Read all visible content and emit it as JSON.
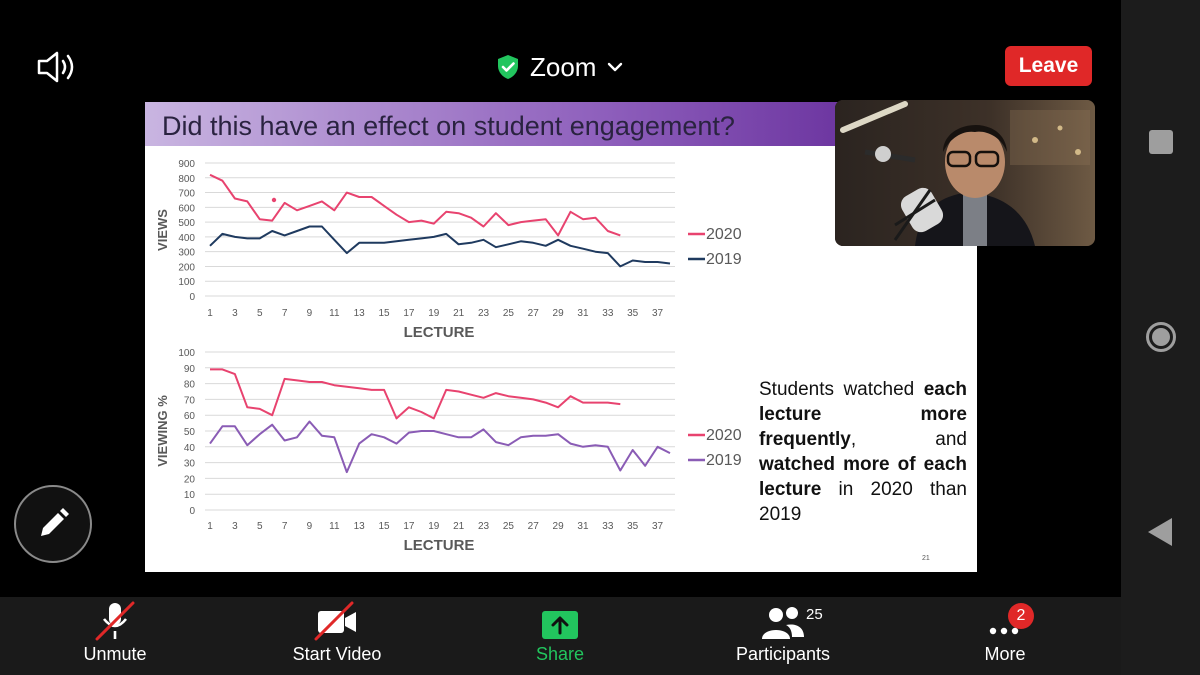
{
  "app": {
    "title": "Zoom",
    "leave_label": "Leave"
  },
  "toolbar": {
    "unmute_label": "Unmute",
    "start_video_label": "Start Video",
    "share_label": "Share",
    "participants_label": "Participants",
    "participants_count": "25",
    "more_label": "More",
    "more_badge": "2"
  },
  "colors": {
    "leave": "#e02828",
    "share_green": "#22c55e",
    "series_2020": "#e8436f",
    "series_2019_top": "#1f3a5f",
    "series_2019_bottom": "#8a5cb5"
  },
  "slide": {
    "title": "Did this have an effect on student engagement?",
    "slide_number": "21",
    "text_parts": {
      "p1": "Students watched ",
      "b1": "each lecture more frequently",
      "p2": ", and ",
      "b2": "watched more of each lecture",
      "p3": " in 2020 than 2019"
    }
  },
  "chart_data": [
    {
      "type": "line",
      "ylabel": "VIEWS",
      "xlabel": "LECTURE",
      "ylim": [
        0,
        900
      ],
      "yticks": [
        "0",
        "100",
        "200",
        "300",
        "400",
        "500",
        "600",
        "700",
        "800",
        "900"
      ],
      "xticks": [
        "1",
        "3",
        "5",
        "7",
        "9",
        "11",
        "13",
        "15",
        "17",
        "19",
        "21",
        "23",
        "25",
        "27",
        "29",
        "31",
        "33",
        "35",
        "37"
      ],
      "grid": true,
      "legend": "right",
      "series": [
        {
          "name": "2020",
          "x": [
            1,
            2,
            3,
            4,
            5,
            6,
            7,
            8,
            9,
            10,
            11,
            12,
            13,
            14,
            15,
            16,
            17,
            18,
            19,
            20,
            21,
            22,
            23,
            24,
            25,
            26,
            27,
            28,
            29,
            30,
            31,
            32,
            33,
            34
          ],
          "values": [
            820,
            780,
            660,
            640,
            520,
            510,
            630,
            580,
            610,
            640,
            580,
            700,
            670,
            670,
            610,
            550,
            500,
            510,
            490,
            570,
            560,
            530,
            470,
            560,
            480,
            500,
            510,
            520,
            410,
            570,
            520,
            530,
            440,
            410
          ]
        },
        {
          "name": "2019",
          "x": [
            1,
            2,
            3,
            4,
            5,
            6,
            7,
            8,
            9,
            10,
            11,
            12,
            13,
            14,
            15,
            16,
            17,
            18,
            19,
            20,
            21,
            22,
            23,
            24,
            25,
            26,
            27,
            28,
            29,
            30,
            31,
            32,
            33,
            34,
            35,
            36,
            37,
            38
          ],
          "values": [
            340,
            420,
            400,
            390,
            390,
            440,
            410,
            440,
            470,
            470,
            380,
            290,
            360,
            360,
            360,
            370,
            380,
            390,
            400,
            420,
            350,
            360,
            380,
            330,
            350,
            370,
            360,
            340,
            380,
            340,
            320,
            300,
            290,
            200,
            240,
            230,
            230,
            220
          ]
        }
      ]
    },
    {
      "type": "line",
      "ylabel": "VIEWING %",
      "xlabel": "LECTURE",
      "ylim": [
        0,
        100
      ],
      "yticks": [
        "0",
        "10",
        "20",
        "30",
        "40",
        "50",
        "60",
        "70",
        "80",
        "90",
        "100"
      ],
      "xticks": [
        "1",
        "3",
        "5",
        "7",
        "9",
        "11",
        "13",
        "15",
        "17",
        "19",
        "21",
        "23",
        "25",
        "27",
        "29",
        "31",
        "33",
        "35",
        "37"
      ],
      "grid": true,
      "legend": "right",
      "series": [
        {
          "name": "2020",
          "x": [
            1,
            2,
            3,
            4,
            5,
            6,
            7,
            8,
            9,
            10,
            11,
            12,
            13,
            14,
            15,
            16,
            17,
            18,
            19,
            20,
            21,
            22,
            23,
            24,
            25,
            26,
            27,
            28,
            29,
            30,
            31,
            32,
            33,
            34
          ],
          "values": [
            89,
            89,
            86,
            65,
            64,
            60,
            83,
            82,
            81,
            81,
            79,
            78,
            77,
            76,
            76,
            58,
            65,
            62,
            58,
            76,
            75,
            73,
            71,
            74,
            72,
            71,
            70,
            68,
            65,
            72,
            68,
            68,
            68,
            67
          ]
        },
        {
          "name": "2019",
          "x": [
            1,
            2,
            3,
            4,
            5,
            6,
            7,
            8,
            9,
            10,
            11,
            12,
            13,
            14,
            15,
            16,
            17,
            18,
            19,
            20,
            21,
            22,
            23,
            24,
            25,
            26,
            27,
            28,
            29,
            30,
            31,
            32,
            33,
            34,
            35,
            36,
            37,
            38
          ],
          "values": [
            42,
            53,
            53,
            41,
            48,
            54,
            44,
            46,
            56,
            47,
            46,
            24,
            42,
            48,
            46,
            42,
            49,
            50,
            50,
            48,
            46,
            46,
            51,
            43,
            41,
            46,
            47,
            47,
            48,
            42,
            40,
            41,
            40,
            25,
            38,
            28,
            40,
            36
          ]
        }
      ]
    }
  ]
}
